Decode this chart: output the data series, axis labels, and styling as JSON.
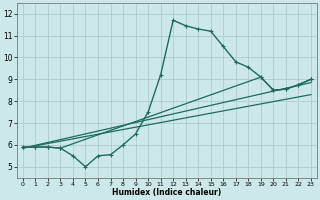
{
  "xlabel": "Humidex (Indice chaleur)",
  "xlim": [
    -0.5,
    23.5
  ],
  "ylim": [
    4.5,
    12.5
  ],
  "xticks": [
    0,
    1,
    2,
    3,
    4,
    5,
    6,
    7,
    8,
    9,
    10,
    11,
    12,
    13,
    14,
    15,
    16,
    17,
    18,
    19,
    20,
    21,
    22,
    23
  ],
  "yticks": [
    5,
    6,
    7,
    8,
    9,
    10,
    11,
    12
  ],
  "bg_color": "#cde8e8",
  "grid_color": "#b0cccc",
  "line_color": "#1e6b5e",
  "main_line": {
    "x": [
      0,
      1,
      2,
      3,
      4,
      5,
      6,
      7,
      8,
      9,
      10,
      11,
      12,
      13,
      14,
      15,
      16,
      17,
      18,
      19,
      20,
      21,
      22,
      23
    ],
    "y": [
      5.9,
      5.9,
      5.9,
      5.85,
      5.5,
      5.0,
      5.5,
      5.55,
      6.0,
      6.5,
      7.5,
      9.2,
      11.7,
      11.45,
      11.3,
      11.2,
      10.5,
      9.8,
      9.55,
      9.1,
      8.5,
      8.55,
      8.75,
      9.0
    ]
  },
  "trend_line1": {
    "x": [
      0,
      1,
      2,
      3,
      19,
      20,
      21,
      22,
      23
    ],
    "y": [
      5.9,
      5.9,
      5.9,
      5.85,
      9.1,
      8.5,
      8.55,
      8.75,
      9.0
    ]
  },
  "trend_line2": {
    "x": [
      0,
      23
    ],
    "y": [
      5.85,
      8.85
    ]
  },
  "trend_line3": {
    "x": [
      0,
      23
    ],
    "y": [
      5.85,
      8.3
    ]
  },
  "figsize": [
    3.2,
    2.0
  ],
  "dpi": 100
}
